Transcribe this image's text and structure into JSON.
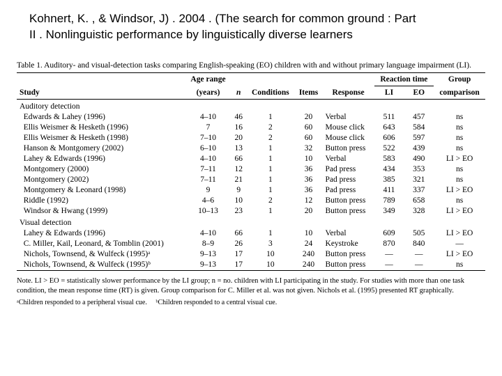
{
  "title_line1": "Kohnert, K. , & Windsor, J) . 2004 . (The search for common ground : Part",
  "title_line2": "II . Nonlinguistic performance by linguistically diverse learners",
  "table": {
    "caption": "Table 1. Auditory- and visual-detection tasks comparing English-speaking (EO) children with and without primary language impairment (LI).",
    "headers": {
      "study": "Study",
      "age_range": "Age range",
      "age_unit": "(years)",
      "n": "n",
      "conditions": "Conditions",
      "items": "Items",
      "response": "Response",
      "rt_group": "Reaction time",
      "li": "LI",
      "eo": "EO",
      "group_comp": "Group",
      "group_comp2": "comparison"
    },
    "sections": [
      {
        "label": "Auditory detection",
        "rows": [
          {
            "study": "Edwards & Lahey (1996)",
            "age": "4–10",
            "n": "46",
            "cond": "1",
            "items": "20",
            "resp": "Verbal",
            "li": "511",
            "eo": "457",
            "cmp": "ns"
          },
          {
            "study": "Ellis Weismer & Hesketh (1996)",
            "age": "7",
            "n": "16",
            "cond": "2",
            "items": "60",
            "resp": "Mouse click",
            "li": "643",
            "eo": "584",
            "cmp": "ns"
          },
          {
            "study": "Ellis Weismer & Hesketh (1998)",
            "age": "7–10",
            "n": "20",
            "cond": "2",
            "items": "60",
            "resp": "Mouse click",
            "li": "606",
            "eo": "597",
            "cmp": "ns"
          },
          {
            "study": "Hanson & Montgomery (2002)",
            "age": "6–10",
            "n": "13",
            "cond": "1",
            "items": "32",
            "resp": "Button press",
            "li": "522",
            "eo": "439",
            "cmp": "ns"
          },
          {
            "study": "Lahey & Edwards (1996)",
            "age": "4–10",
            "n": "66",
            "cond": "1",
            "items": "10",
            "resp": "Verbal",
            "li": "583",
            "eo": "490",
            "cmp": "LI > EO"
          },
          {
            "study": "Montgomery (2000)",
            "age": "7–11",
            "n": "12",
            "cond": "1",
            "items": "36",
            "resp": "Pad press",
            "li": "434",
            "eo": "353",
            "cmp": "ns"
          },
          {
            "study": "Montgomery (2002)",
            "age": "7–11",
            "n": "21",
            "cond": "1",
            "items": "36",
            "resp": "Pad press",
            "li": "385",
            "eo": "321",
            "cmp": "ns"
          },
          {
            "study": "Montgomery & Leonard (1998)",
            "age": "9",
            "n": "9",
            "cond": "1",
            "items": "36",
            "resp": "Pad press",
            "li": "411",
            "eo": "337",
            "cmp": "LI > EO"
          },
          {
            "study": "Riddle (1992)",
            "age": "4–6",
            "n": "10",
            "cond": "2",
            "items": "12",
            "resp": "Button press",
            "li": "789",
            "eo": "658",
            "cmp": "ns"
          },
          {
            "study": "Windsor & Hwang (1999)",
            "age": "10–13",
            "n": "23",
            "cond": "1",
            "items": "20",
            "resp": "Button press",
            "li": "349",
            "eo": "328",
            "cmp": "LI > EO"
          }
        ]
      },
      {
        "label": "Visual detection",
        "rows": [
          {
            "study": "Lahey & Edwards (1996)",
            "age": "4–10",
            "n": "66",
            "cond": "1",
            "items": "10",
            "resp": "Verbal",
            "li": "609",
            "eo": "505",
            "cmp": "LI > EO"
          },
          {
            "study": "C. Miller, Kail, Leonard, & Tomblin (2001)",
            "age": "8–9",
            "n": "26",
            "cond": "3",
            "items": "24",
            "resp": "Keystroke",
            "li": "870",
            "eo": "840",
            "cmp": "—"
          },
          {
            "study": "Nichols, Townsend, & Wulfeck (1995)ᵃ",
            "age": "9–13",
            "n": "17",
            "cond": "10",
            "items": "240",
            "resp": "Button press",
            "li": "—",
            "eo": "—",
            "cmp": "LI > EO"
          },
          {
            "study": "Nichols, Townsend, & Wulfeck (1995)ᵇ",
            "age": "9–13",
            "n": "17",
            "cond": "10",
            "items": "240",
            "resp": "Button press",
            "li": "—",
            "eo": "—",
            "cmp": "ns"
          }
        ]
      }
    ],
    "note": "Note.   LI > EO = statistically slower performance by the LI group; n = no. children with LI participating in the study. For studies with more than one task condition, the mean response time (RT) is given. Group comparison for C. Miller et al. was not given. Nichols et al. (1995) presented RT graphically.",
    "footnote_a": "ᵃChildren responded to a peripheral visual cue.",
    "footnote_b": "ᵇChildren responded to a central visual cue."
  },
  "fontsize": {
    "title": 17,
    "body": 11.5,
    "note": 10.5,
    "foot": 10
  },
  "colors": {
    "text": "#000000",
    "bg": "#ffffff",
    "rule": "#000000"
  }
}
